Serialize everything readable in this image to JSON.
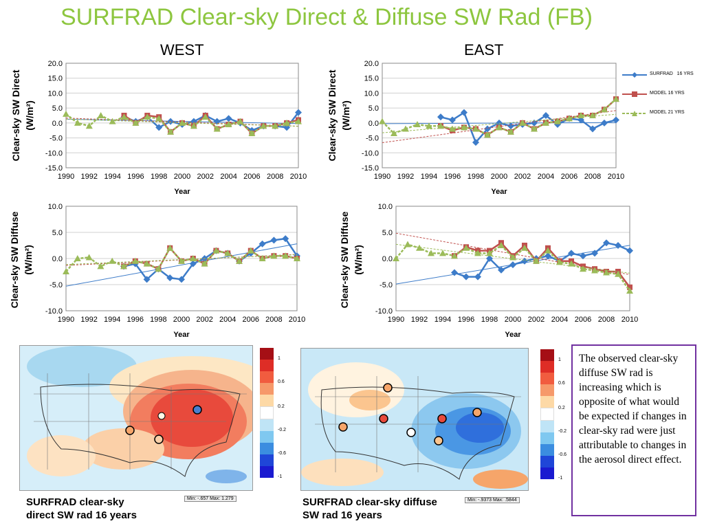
{
  "title": "SURFRAD Clear-sky Direct & Diffuse SW Rad (FB)",
  "region_west": "WEST",
  "region_east": "EAST",
  "legend": [
    "SURFRAD   16 YRS",
    "MODEL 16 YRS",
    "MODEL 21 YRS"
  ],
  "colors": {
    "title": "#8dc63f",
    "surfrad": "#3d7cc9",
    "model16": "#c0504d",
    "model21": "#9bbb59",
    "box": "#7030a0"
  },
  "caption_left": [
    "SURFRAD clear-sky",
    "direct SW rad 16 years"
  ],
  "caption_right": [
    "SURFRAD clear-sky diffuse",
    "SW rad 16 years"
  ],
  "scale_left": "Min: -.657 Max: 1.279",
  "scale_right": "Min: -.9373 Max: .5844",
  "colorbar_ticks": [
    "1",
    "0.6",
    "0.2",
    "-0.2",
    "-0.6",
    "-1"
  ],
  "textbox": "The observed clear-sky diffuse SW rad is increasing which is  opposite of what would be expected if changes in clear-sky rad were just attributable to changes in the aerosol direct effect.",
  "chart_data": [
    {
      "type": "line",
      "panel": "WEST",
      "ylabel": [
        "Clear-sky SW Direct",
        "(W/m²)"
      ],
      "xlabel": "Year",
      "ylim": [
        -15,
        20
      ],
      "yticks": [
        "20.0",
        "15.0",
        "10.0",
        "5.0",
        "0.0",
        "-5.0",
        "-10.0",
        "-15.0"
      ],
      "xticks": [
        "1990",
        "1992",
        "1994",
        "1996",
        "1998",
        "2000",
        "2002",
        "2004",
        "2006",
        "2008",
        "2010"
      ],
      "series": [
        {
          "name": "SURFRAD   16 YRS",
          "x": [
            1995,
            1996,
            1997,
            1998,
            1999,
            2000,
            2001,
            2002,
            2003,
            2004,
            2005,
            2006,
            2007,
            2008,
            2009,
            2010
          ],
          "values": [
            2.0,
            0.5,
            2.0,
            -1.5,
            0.5,
            -0.5,
            0.5,
            2.5,
            0.5,
            1.5,
            0.0,
            -2.5,
            -1.0,
            -1.0,
            -1.5,
            3.5
          ]
        },
        {
          "name": "MODEL 16 YRS",
          "x": [
            1995,
            1996,
            1997,
            1998,
            1999,
            2000,
            2001,
            2002,
            2003,
            2004,
            2005,
            2006,
            2007,
            2008,
            2009,
            2010
          ],
          "values": [
            2.5,
            0.0,
            2.5,
            2.0,
            -3.0,
            0.0,
            -1.0,
            2.5,
            -2.0,
            -0.5,
            0.5,
            -3.5,
            -1.0,
            -1.0,
            0.0,
            1.0
          ]
        },
        {
          "name": "MODEL 21 YRS",
          "x": [
            1990,
            1991,
            1992,
            1993,
            1994,
            1995,
            1996,
            1997,
            1998,
            1999,
            2000,
            2001,
            2002,
            2003,
            2004,
            2005,
            2006,
            2007,
            2008,
            2009,
            2010
          ],
          "values": [
            3.0,
            0.0,
            -1.0,
            2.5,
            0.5,
            2.0,
            0.0,
            2.0,
            1.5,
            -3.0,
            0.0,
            -1.0,
            2.0,
            -2.0,
            -0.5,
            0.5,
            -3.5,
            -1.0,
            -1.0,
            0.0,
            0.5
          ]
        }
      ]
    },
    {
      "type": "line",
      "panel": "EAST",
      "ylabel": [
        "Clear-sky SW Direct",
        "(W/m²)"
      ],
      "xlabel": "Year",
      "ylim": [
        -15,
        20
      ],
      "yticks": [
        "20.0",
        "15.0",
        "10.0",
        "5.0",
        "0.0",
        "-5.0",
        "-10.0",
        "-15.0"
      ],
      "xticks": [
        "1990",
        "1992",
        "1994",
        "1996",
        "1998",
        "2000",
        "2002",
        "2004",
        "2006",
        "2008",
        "2010"
      ],
      "series": [
        {
          "name": "SURFRAD   16 YRS",
          "x": [
            1995,
            1996,
            1997,
            1998,
            1999,
            2000,
            2001,
            2002,
            2003,
            2004,
            2005,
            2006,
            2007,
            2008,
            2009,
            2010
          ],
          "values": [
            2.0,
            1.0,
            3.5,
            -6.5,
            -2.0,
            0.0,
            -1.0,
            -0.5,
            0.0,
            2.5,
            -0.5,
            1.5,
            1.0,
            -2.0,
            0.0,
            1.0
          ]
        },
        {
          "name": "MODEL 16 YRS",
          "x": [
            1995,
            1996,
            1997,
            1998,
            1999,
            2000,
            2001,
            2002,
            2003,
            2004,
            2005,
            2006,
            2007,
            2008,
            2009,
            2010
          ],
          "values": [
            -1.0,
            -2.5,
            -1.5,
            -2.0,
            -4.0,
            -1.5,
            -3.0,
            0.0,
            -2.0,
            0.0,
            0.5,
            1.5,
            2.5,
            2.5,
            4.5,
            8.0
          ]
        },
        {
          "name": "MODEL 21 YRS",
          "x": [
            1990,
            1991,
            1992,
            1993,
            1994,
            1995,
            1996,
            1997,
            1998,
            1999,
            2000,
            2001,
            2002,
            2003,
            2004,
            2005,
            2006,
            2007,
            2008,
            2009,
            2010
          ],
          "values": [
            0.5,
            -3.5,
            -2.0,
            -0.5,
            -1.0,
            -1.0,
            -2.0,
            -1.5,
            -2.0,
            -4.0,
            -1.5,
            -3.0,
            0.0,
            -2.0,
            0.0,
            0.5,
            1.5,
            2.5,
            2.5,
            4.5,
            8.0
          ]
        }
      ]
    },
    {
      "type": "line",
      "panel": "WEST",
      "ylabel": [
        "Clear-sky SW Diffuse",
        "(W/m²)"
      ],
      "xlabel": "Year",
      "ylim": [
        -10,
        10
      ],
      "yticks": [
        "10.0",
        "5.0",
        "0.0",
        "-5.0",
        "-10.0"
      ],
      "xticks": [
        "1990",
        "1992",
        "1994",
        "1996",
        "1998",
        "2000",
        "2002",
        "2004",
        "2006",
        "2008",
        "2010"
      ],
      "series": [
        {
          "name": "SURFRAD   16 YRS",
          "x": [
            1995,
            1996,
            1997,
            1998,
            1999,
            2000,
            2001,
            2002,
            2003,
            2004,
            2005,
            2006,
            2007,
            2008,
            2009,
            2010
          ],
          "values": [
            -1.5,
            -1.0,
            -4.0,
            -2.0,
            -3.7,
            -4.0,
            -1.0,
            0.0,
            1.5,
            1.0,
            -0.5,
            1.0,
            2.8,
            3.5,
            3.8,
            0.5
          ]
        },
        {
          "name": "MODEL 16 YRS",
          "x": [
            1995,
            1996,
            1997,
            1998,
            1999,
            2000,
            2001,
            2002,
            2003,
            2004,
            2005,
            2006,
            2007,
            2008,
            2009,
            2010
          ],
          "values": [
            -1.5,
            -0.5,
            -1.0,
            -2.0,
            2.0,
            -0.5,
            0.0,
            -1.0,
            1.5,
            1.0,
            -0.5,
            1.5,
            0.0,
            0.5,
            0.5,
            0.0
          ]
        },
        {
          "name": "MODEL 21 YRS",
          "x": [
            1990,
            1991,
            1992,
            1993,
            1994,
            1995,
            1996,
            1997,
            1998,
            1999,
            2000,
            2001,
            2002,
            2003,
            2004,
            2005,
            2006,
            2007,
            2008,
            2009,
            2010
          ],
          "values": [
            -2.5,
            0.0,
            0.2,
            -1.5,
            -0.5,
            -1.5,
            -0.5,
            -1.0,
            -2.0,
            2.0,
            -0.5,
            0.0,
            -1.0,
            1.5,
            1.0,
            -0.5,
            1.5,
            0.0,
            0.5,
            0.5,
            0.0
          ]
        }
      ]
    },
    {
      "type": "line",
      "panel": "EAST",
      "ylabel": [
        "Clear-sky SW Diffuse",
        "(W/m²)"
      ],
      "xlabel": "Year",
      "ylim": [
        -10,
        10
      ],
      "yticks": [
        "10.0",
        "5.0",
        "0.0",
        "-5.0",
        "-10.0"
      ],
      "xticks": [
        "1990",
        "1992",
        "1994",
        "1996",
        "1998",
        "2000",
        "2002",
        "2004",
        "2006",
        "2008",
        "2010"
      ],
      "series": [
        {
          "name": "SURFRAD   16 YRS",
          "x": [
            1995,
            1996,
            1997,
            1998,
            1999,
            2000,
            2001,
            2002,
            2003,
            2004,
            2005,
            2006,
            2007,
            2008,
            2009,
            2010
          ],
          "values": [
            -2.7,
            -3.5,
            -3.5,
            0.0,
            -2.2,
            -1.2,
            -0.5,
            0.0,
            0.5,
            -0.5,
            1.0,
            0.5,
            1.0,
            3.0,
            2.5,
            1.5
          ]
        },
        {
          "name": "MODEL 16 YRS",
          "x": [
            1995,
            1996,
            1997,
            1998,
            1999,
            2000,
            2001,
            2002,
            2003,
            2004,
            2005,
            2006,
            2007,
            2008,
            2009,
            2010
          ],
          "values": [
            0.5,
            2.2,
            1.5,
            1.5,
            3.0,
            0.5,
            2.5,
            -0.5,
            2.0,
            -0.5,
            -0.5,
            -1.5,
            -2.0,
            -2.5,
            -2.5,
            -5.5
          ]
        },
        {
          "name": "MODEL 21 YRS",
          "x": [
            1990,
            1991,
            1992,
            1993,
            1994,
            1995,
            1996,
            1997,
            1998,
            1999,
            2000,
            2001,
            2002,
            2003,
            2004,
            2005,
            2006,
            2007,
            2008,
            2009,
            2010
          ],
          "values": [
            0.0,
            2.7,
            2.0,
            1.0,
            1.0,
            0.5,
            2.0,
            1.0,
            1.0,
            2.5,
            0.2,
            2.0,
            -0.5,
            1.5,
            -0.7,
            -1.0,
            -2.0,
            -2.3,
            -2.7,
            -3.0,
            -6.2
          ]
        }
      ]
    }
  ]
}
